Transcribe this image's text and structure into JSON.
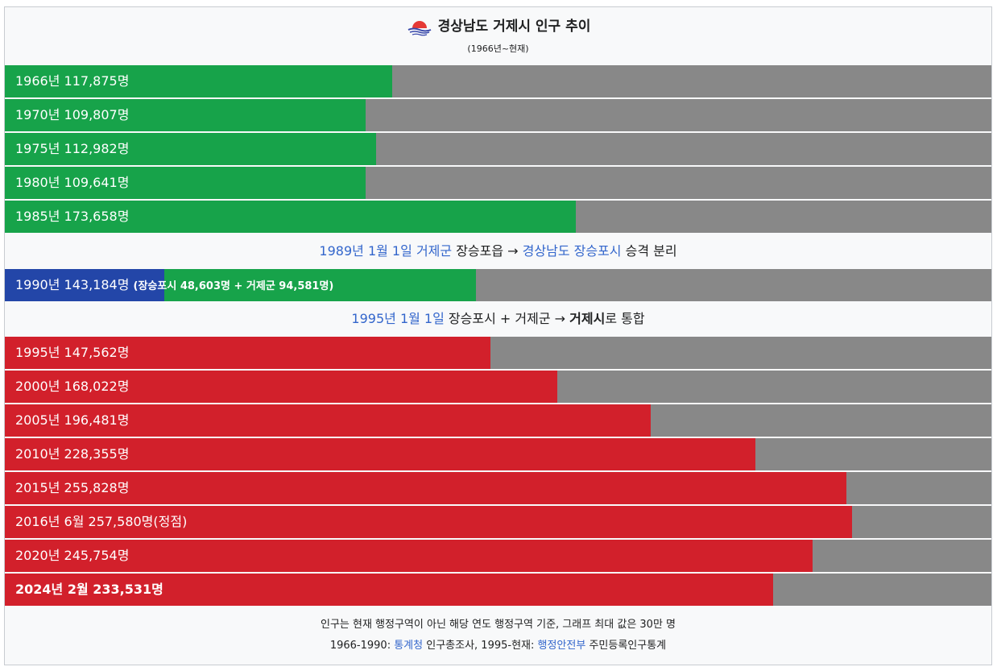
{
  "title": "경상남도 거제시 인구 추이",
  "subtitle": "(1966년~현재)",
  "colors": {
    "green": "#17a34a",
    "blue": "#2346a8",
    "red": "#d2202b",
    "remainder": "#888888",
    "link": "#3366cc"
  },
  "icon": "geoje-city-emblem-icon",
  "chart_data": {
    "type": "bar",
    "orientation": "horizontal",
    "max_value": 300000,
    "bars": [
      {
        "label": "1966년 117,875명",
        "value": 117875,
        "color": "green"
      },
      {
        "label": "1970년 109,807명",
        "value": 109807,
        "color": "green"
      },
      {
        "label": "1975년 112,982명",
        "value": 112982,
        "color": "green"
      },
      {
        "label": "1980년 109,641명",
        "value": 109641,
        "color": "green"
      },
      {
        "label": "1985년 173,658명",
        "value": 173658,
        "color": "green"
      },
      {
        "label": "1995년 147,562명",
        "value": 147562,
        "color": "red"
      },
      {
        "label": "2000년 168,022명",
        "value": 168022,
        "color": "red"
      },
      {
        "label": "2005년 196,481명",
        "value": 196481,
        "color": "red"
      },
      {
        "label": "2010년 228,355명",
        "value": 228355,
        "color": "red"
      },
      {
        "label": "2015년 255,828명",
        "value": 255828,
        "color": "red"
      },
      {
        "label": "2016년 6월 257,580명(정점)",
        "value": 257580,
        "color": "red"
      },
      {
        "label": "2020년 245,754명",
        "value": 245754,
        "color": "red"
      },
      {
        "label": "2024년 2월 233,531명",
        "value": 233531,
        "color": "red",
        "bold": true
      }
    ],
    "split_bar": {
      "label_main": "1990년 143,184명",
      "label_detail": "(장승포시 48,603명 + 거제군 94,581명)",
      "total": 143184,
      "segments": [
        {
          "name": "장승포시",
          "value": 48603,
          "color": "blue"
        },
        {
          "name": "거제군",
          "value": 94581,
          "color": "green"
        }
      ]
    }
  },
  "notes": {
    "split_1989": {
      "date": "1989년 1월 1일",
      "from_link": "거제군",
      "from_rest": " 장승포읍 → ",
      "to_link": "경상남도 장승포시",
      "suffix": " 승격 분리"
    },
    "merge_1995": {
      "date": "1995년 1월 1일",
      "text": " 장승포시 + 거제군 → ",
      "result": "거제시",
      "suffix": "로 통합"
    }
  },
  "footer": {
    "line1": "인구는 현재 행정구역이 아닌 해당 연도 행정구역 기준, 그래프 최대 값은 30만 명",
    "line2_prefix": "1966-1990: ",
    "line2_link1": "통계청",
    "line2_mid": " 인구총조사, 1995-현재: ",
    "line2_link2": "행정안전부",
    "line2_suffix": " 주민등록인구통계"
  }
}
